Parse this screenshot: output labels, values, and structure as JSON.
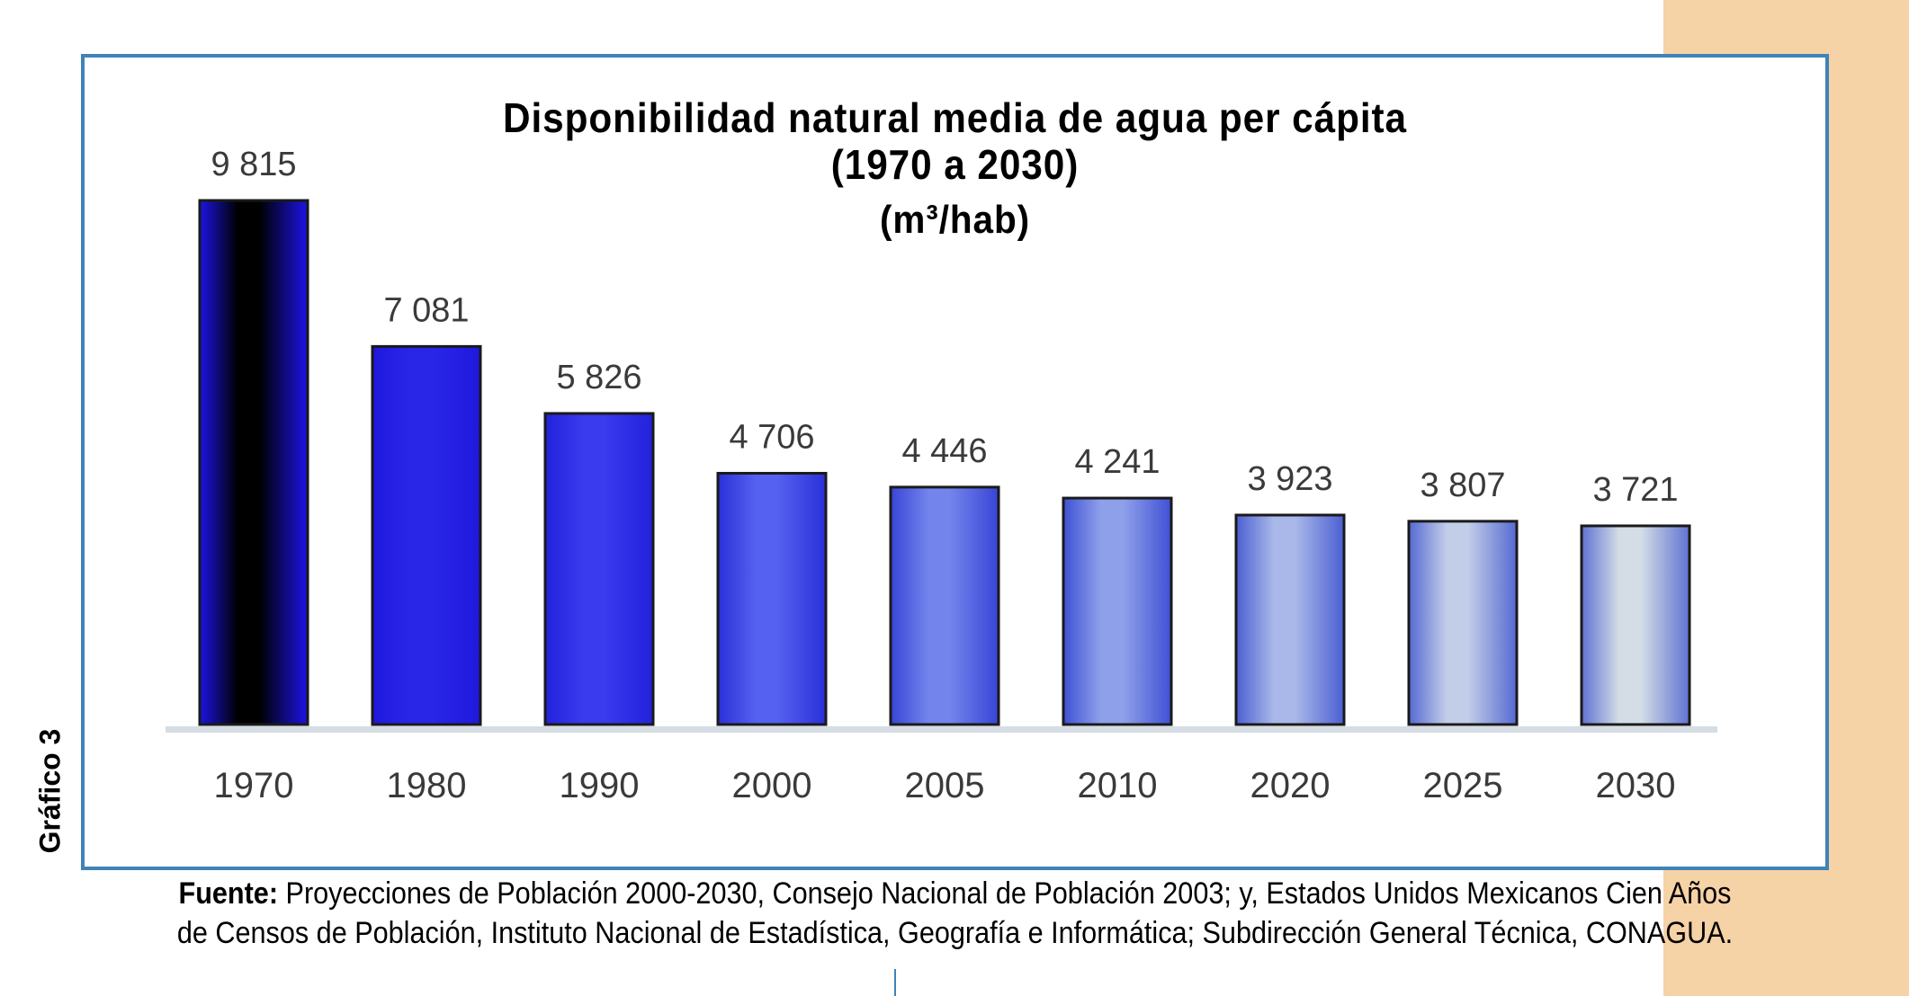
{
  "colors": {
    "side_band": "#f6d2a7",
    "frame_border": "#3f83b8",
    "bar_outline": "#1a1a1a",
    "baseline": "#d6dde4"
  },
  "side_label": "Gráfico 3",
  "source": {
    "label": "Fuente:",
    "text": " Proyecciones de Población 2000-2030, Consejo Nacional de Población 2003; y, Estados Unidos Mexicanos Cien Años de Censos de Población, Instituto Nacional de Estadística, Geografía e Informática; Subdirección General Técnica, CONAGUA."
  },
  "chart_data": {
    "type": "bar",
    "title": "Disponibilidad natural media de agua per cápita",
    "subtitle": "(1970 a 2030)",
    "unit": "(m³/hab)",
    "categories": [
      "1970",
      "1980",
      "1990",
      "2000",
      "2005",
      "2010",
      "2020",
      "2025",
      "2030"
    ],
    "values": [
      9815,
      7081,
      5826,
      4706,
      4446,
      4241,
      3923,
      3807,
      3721
    ],
    "data_labels": [
      "9 815",
      "7 081",
      "5 826",
      "4 706",
      "4 446",
      "4 241",
      "3 923",
      "3 807",
      "3 721"
    ],
    "ylim": [
      0,
      9815
    ],
    "grid": false,
    "legend": "none",
    "bar_colors": [
      {
        "edge": "#1d13e6",
        "mid": "#000000"
      },
      {
        "edge": "#1f18dd",
        "mid": "#2a26e8"
      },
      {
        "edge": "#2222dc",
        "mid": "#3a3aee"
      },
      {
        "edge": "#2a30d8",
        "mid": "#5561f0"
      },
      {
        "edge": "#3745d6",
        "mid": "#7384ec"
      },
      {
        "edge": "#3f51d4",
        "mid": "#8fa0ea"
      },
      {
        "edge": "#4b5fd2",
        "mid": "#a9b8e8"
      },
      {
        "edge": "#5669d2",
        "mid": "#c2cde8"
      },
      {
        "edge": "#5f72d2",
        "mid": "#d4dde6"
      }
    ]
  }
}
